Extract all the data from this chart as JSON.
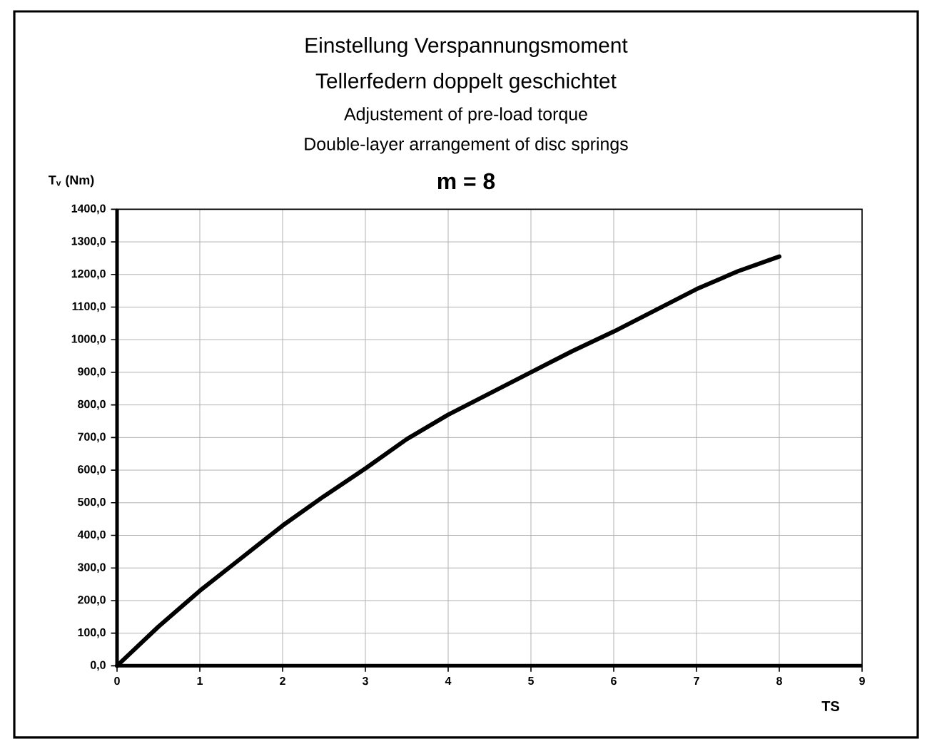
{
  "chart_data": {
    "type": "line",
    "title": "Einstellung Verspannungsmoment",
    "subtitle": "Tellerfedern doppelt geschichtet",
    "annotations": [
      "Adjustement of pre-load torque",
      "Double-layer arrangement of disc springs",
      "m = 8"
    ],
    "xlabel": "TS",
    "ylabel": "T$_{v}$ (Nm)",
    "series": [
      {
        "color": "#000000",
        "x": [
          0,
          0.5,
          1,
          1.5,
          2,
          2.5,
          3,
          3.5,
          4,
          4.5,
          5,
          5.5,
          6,
          6.5,
          7,
          7.5,
          8
        ],
        "values": [
          0,
          120,
          230,
          330,
          430,
          520,
          605,
          695,
          770,
          835,
          900,
          965,
          1025,
          1090,
          1155,
          1210,
          1255
        ]
      }
    ],
    "xlim": [
      0,
      9
    ],
    "xticks": [
      0,
      1,
      2,
      3,
      4,
      5,
      6,
      7,
      8,
      9
    ],
    "ylim": [
      0,
      1400
    ],
    "yticks": [
      {
        "value": 0,
        "label": "0,0"
      },
      {
        "value": 100,
        "label": "100,0"
      },
      {
        "value": 200,
        "label": "200,0"
      },
      {
        "value": 300,
        "label": "300,0"
      },
      {
        "value": 400,
        "label": "400,0"
      },
      {
        "value": 500,
        "label": "500,0"
      },
      {
        "value": 600,
        "label": "600,0"
      },
      {
        "value": 700,
        "label": "700,0"
      },
      {
        "value": 800,
        "label": "800,0"
      },
      {
        "value": 900,
        "label": "900,0"
      },
      {
        "value": 1000,
        "label": "1000,0"
      },
      {
        "value": 1100,
        "label": "1100,0"
      },
      {
        "value": 1200,
        "label": "1200,0"
      },
      {
        "value": 1300,
        "label": "1300,0"
      },
      {
        "value": 1400,
        "label": "1400,0"
      }
    ],
    "grid": true,
    "line_style": "solid",
    "marker": "none"
  }
}
